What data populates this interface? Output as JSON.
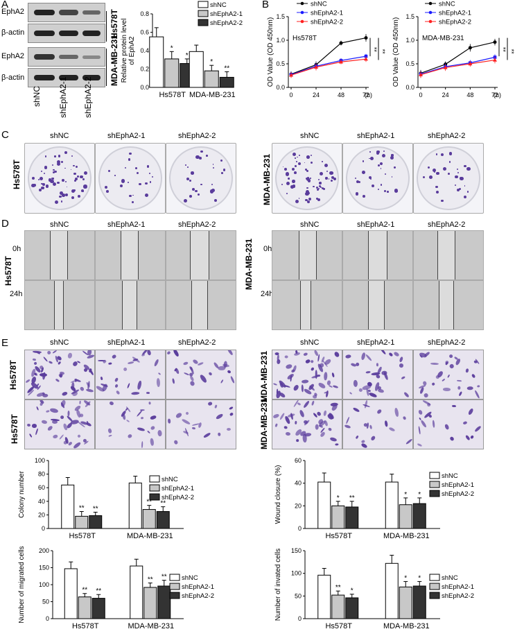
{
  "panels": {
    "A": "A",
    "B": "B",
    "C": "C",
    "D": "D",
    "E": "E"
  },
  "blot": {
    "rows": [
      "EphA2",
      "β-actin",
      "EphA2",
      "β-actin"
    ],
    "cells": [
      "Hs578T",
      "MDA-MB-231"
    ],
    "lanes": [
      "shNC",
      "shEphA2-1",
      "shEphA2-2"
    ]
  },
  "groups": [
    "shNC",
    "shEphA2-1",
    "shEphA2-2"
  ],
  "cell_lines": [
    "Hs578T",
    "MDA-MB-231"
  ],
  "time_labels": [
    "0h",
    "24h"
  ],
  "colors": {
    "shNC": "#ffffff",
    "shEphA2-1": "#c8c8c8",
    "shEphA2-2": "#333333",
    "line_shNC": "#000000",
    "line_sh1": "#1a1aff",
    "line_sh2": "#ff2020",
    "stain": "#5a3c9c"
  },
  "chart_data": [
    {
      "id": "protein",
      "type": "bar",
      "ylabel": "Relative protein level of EphA2",
      "ylim": [
        0,
        0.8
      ],
      "yticks": [
        "0.0",
        "0.2",
        "0.4",
        "0.6",
        "0.8"
      ],
      "categories": [
        "Hs578T",
        "MDA-MB-231"
      ],
      "series": [
        {
          "name": "shNC",
          "values": [
            0.55,
            0.39
          ],
          "err": [
            0.1,
            0.07
          ],
          "sig": [
            "",
            ""
          ]
        },
        {
          "name": "shEphA2-1",
          "values": [
            0.31,
            0.18
          ],
          "err": [
            0.08,
            0.06
          ],
          "sig": [
            "*",
            "*"
          ]
        },
        {
          "name": "shEphA2-2",
          "values": [
            0.26,
            0.11
          ],
          "err": [
            0.05,
            0.06
          ],
          "sig": [
            "*",
            "**"
          ]
        }
      ]
    },
    {
      "id": "od_hs",
      "type": "line",
      "title": "Hs578T",
      "ylabel": "OD Value (OD 450nm)",
      "xlabel": "(h)",
      "x": [
        0,
        24,
        48,
        72
      ],
      "xticks": [
        "0",
        "24",
        "48",
        "72"
      ],
      "ylim": [
        0,
        1.5
      ],
      "yticks": [
        "0.0",
        "0.5",
        "1.0",
        "1.5"
      ],
      "sig": [
        "**",
        "**"
      ],
      "series": [
        {
          "name": "shNC",
          "values": [
            0.28,
            0.48,
            0.94,
            1.05
          ],
          "err": [
            0.06,
            0.07,
            0.05,
            0.08
          ]
        },
        {
          "name": "shEphA2-1",
          "values": [
            0.27,
            0.45,
            0.57,
            0.66
          ],
          "err": [
            0.06,
            0.07,
            0.05,
            0.05
          ]
        },
        {
          "name": "shEphA2-2",
          "values": [
            0.26,
            0.43,
            0.54,
            0.6
          ],
          "err": [
            0.06,
            0.07,
            0.05,
            0.06
          ]
        }
      ]
    },
    {
      "id": "od_mda",
      "type": "line",
      "title": "MDA-MB-231",
      "ylabel": "OD Value (OD 450nm)",
      "xlabel": "(h)",
      "x": [
        0,
        24,
        48,
        72
      ],
      "xticks": [
        "0",
        "24",
        "48",
        "72"
      ],
      "ylim": [
        0,
        1.5
      ],
      "yticks": [
        "0.0",
        "0.5",
        "1.0",
        "1.5"
      ],
      "sig": [
        "**",
        "**"
      ],
      "series": [
        {
          "name": "shNC",
          "values": [
            0.3,
            0.49,
            0.84,
            0.96
          ],
          "err": [
            0.07,
            0.06,
            0.08,
            0.07
          ]
        },
        {
          "name": "shEphA2-1",
          "values": [
            0.28,
            0.44,
            0.52,
            0.64
          ],
          "err": [
            0.07,
            0.07,
            0.06,
            0.06
          ]
        },
        {
          "name": "shEphA2-2",
          "values": [
            0.27,
            0.42,
            0.5,
            0.58
          ],
          "err": [
            0.07,
            0.07,
            0.06,
            0.07
          ]
        }
      ]
    },
    {
      "id": "colony",
      "type": "bar",
      "ylabel": "Colony number",
      "ylim": [
        0,
        100
      ],
      "yticks": [
        "0",
        "20",
        "40",
        "60",
        "80",
        "100"
      ],
      "categories": [
        "Hs578T",
        "MDA-MB-231"
      ],
      "series": [
        {
          "name": "shNC",
          "values": [
            64,
            67
          ],
          "err": [
            11,
            10
          ],
          "sig": [
            "",
            ""
          ]
        },
        {
          "name": "shEphA2-1",
          "values": [
            18,
            28
          ],
          "err": [
            7,
            6
          ],
          "sig": [
            "**",
            "**"
          ]
        },
        {
          "name": "shEphA2-2",
          "values": [
            19,
            25
          ],
          "err": [
            5,
            7
          ],
          "sig": [
            "**",
            "**"
          ]
        }
      ]
    },
    {
      "id": "wound",
      "type": "bar",
      "ylabel": "Wound closure (%)",
      "ylim": [
        0,
        60
      ],
      "yticks": [
        "0",
        "20",
        "40",
        "60"
      ],
      "categories": [
        "Hs578T",
        "MDA-MB-231"
      ],
      "series": [
        {
          "name": "shNC",
          "values": [
            41,
            41
          ],
          "err": [
            8,
            7
          ],
          "sig": [
            "",
            ""
          ]
        },
        {
          "name": "shEphA2-1",
          "values": [
            20,
            21
          ],
          "err": [
            4,
            6
          ],
          "sig": [
            "*",
            "*"
          ]
        },
        {
          "name": "shEphA2-2",
          "values": [
            19,
            22
          ],
          "err": [
            5,
            5
          ],
          "sig": [
            "**",
            "*"
          ]
        }
      ]
    },
    {
      "id": "migrated",
      "type": "bar",
      "ylabel": "Number of migrated cells",
      "ylim": [
        0,
        200
      ],
      "yticks": [
        "0",
        "50",
        "100",
        "150",
        "200"
      ],
      "categories": [
        "Hs578T",
        "MDA-MB-231"
      ],
      "series": [
        {
          "name": "shNC",
          "values": [
            147,
            155
          ],
          "err": [
            20,
            20
          ],
          "sig": [
            "",
            ""
          ]
        },
        {
          "name": "shEphA2-1",
          "values": [
            64,
            92
          ],
          "err": [
            10,
            13
          ],
          "sig": [
            "**",
            "**"
          ]
        },
        {
          "name": "shEphA2-2",
          "values": [
            60,
            96
          ],
          "err": [
            11,
            17
          ],
          "sig": [
            "**",
            "**"
          ]
        }
      ]
    },
    {
      "id": "invaded",
      "type": "bar",
      "ylabel": "Number of invated cells",
      "ylim": [
        0,
        150
      ],
      "yticks": [
        "0",
        "50",
        "100",
        "150"
      ],
      "categories": [
        "Hs578T",
        "MDA-MB-231"
      ],
      "series": [
        {
          "name": "shNC",
          "values": [
            96,
            122
          ],
          "err": [
            15,
            18
          ],
          "sig": [
            "",
            ""
          ]
        },
        {
          "name": "shEphA2-1",
          "values": [
            52,
            70
          ],
          "err": [
            9,
            12
          ],
          "sig": [
            "**",
            "*"
          ]
        },
        {
          "name": "shEphA2-2",
          "values": [
            46,
            72
          ],
          "err": [
            8,
            10
          ],
          "sig": [
            "*",
            "*"
          ]
        }
      ]
    }
  ]
}
